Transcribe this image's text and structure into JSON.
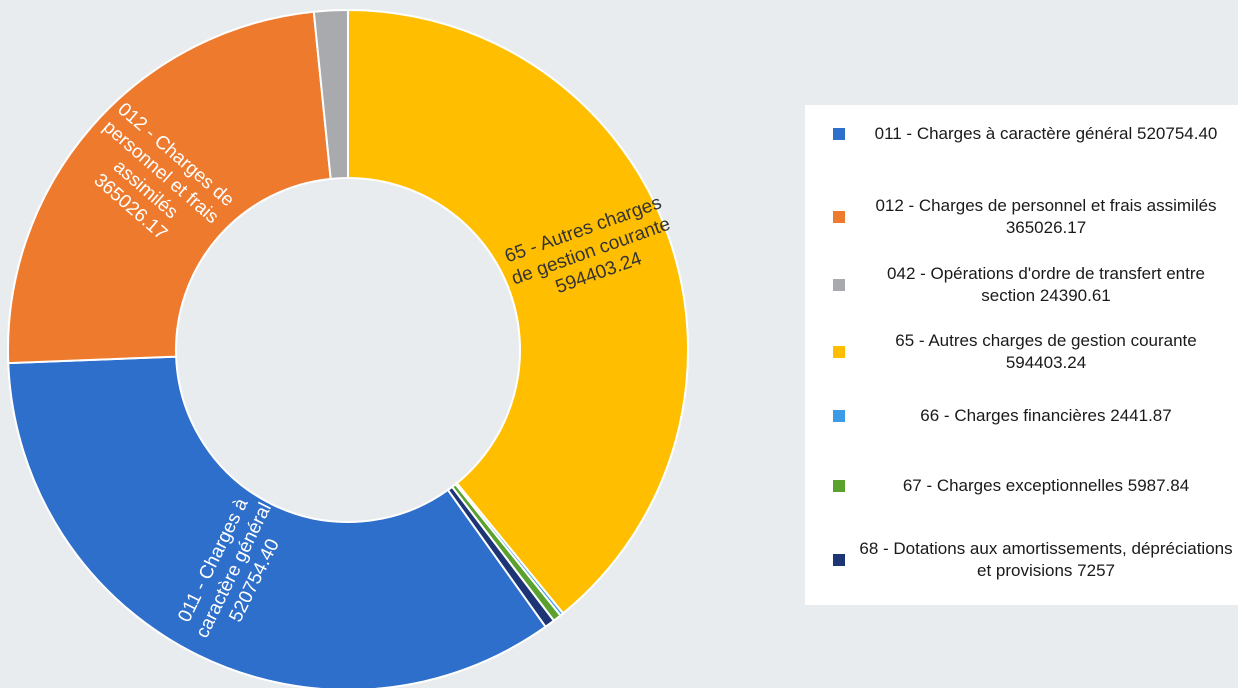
{
  "chart_data": {
    "type": "donut",
    "categories": [
      "011 - Charges à caractère général",
      "012 - Charges de personnel et frais assimilés",
      "042 - Opérations d'ordre de transfert entre section",
      "65 - Autres charges de gestion courante",
      "66 - Charges financières",
      "67 - Charges exceptionnelles",
      "68 - Dotations aux amortissements, dépréciations et provisions"
    ],
    "values": [
      520754.4,
      365026.17,
      24390.61,
      594403.24,
      2441.87,
      5987.84,
      7257
    ],
    "value_labels": [
      "520754.40",
      "365026.17",
      "24390.61",
      "594403.24",
      "2441.87",
      "5987.84",
      "7257"
    ],
    "colors": [
      "#2e6fcb",
      "#ee7a2e",
      "#a8aaad",
      "#ffbf00",
      "#3b9be6",
      "#5aa12e",
      "#1d3475"
    ],
    "legend": "right"
  }
}
